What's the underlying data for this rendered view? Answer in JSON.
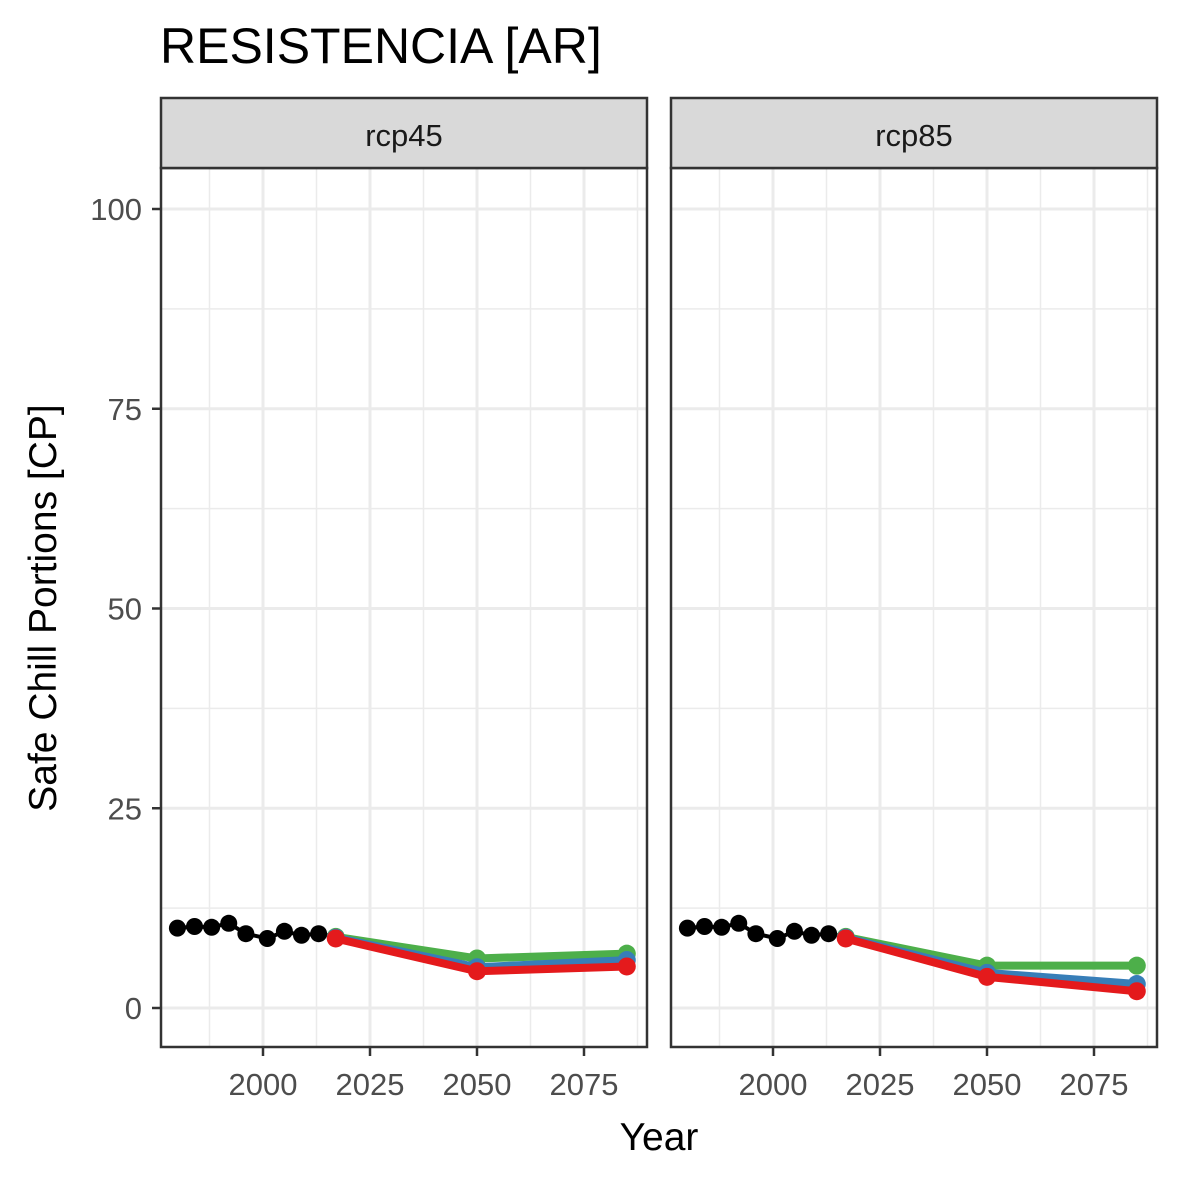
{
  "chart_data": {
    "type": "line",
    "title": "RESISTENCIA [AR]",
    "xlabel": "Year",
    "ylabel": "Safe Chill Portions [CP]",
    "xlim": [
      1975,
      2090
    ],
    "ylim": [
      -5,
      105
    ],
    "x_ticks": [
      2000,
      2025,
      2050,
      2075
    ],
    "x_tick_labels": [
      "2000",
      "2025",
      "2050",
      "2075"
    ],
    "y_ticks": [
      0,
      25,
      50,
      75,
      100
    ],
    "y_tick_labels": [
      "0",
      "25",
      "50",
      "75",
      "100"
    ],
    "grid": true,
    "legend": "none",
    "colors": {
      "historic": "#000000",
      "green": "#4daf4a",
      "blue": "#377eb8",
      "red": "#e41a1c",
      "strip_fill": "#d9d9d9",
      "grid": "#ebebeb",
      "border": "#333333"
    },
    "panels": [
      {
        "label": "rcp45",
        "historic": {
          "x": [
            1980,
            1984,
            1988,
            1992,
            1996,
            2001,
            2005,
            2009,
            2013,
            2017
          ],
          "y": [
            10.0,
            10.2,
            10.1,
            10.6,
            9.3,
            8.7,
            9.6,
            9.1,
            9.3,
            8.9
          ]
        },
        "series": [
          {
            "color": "green",
            "x": [
              2017,
              2050,
              2085
            ],
            "y": [
              8.9,
              6.2,
              6.8
            ]
          },
          {
            "color": "blue",
            "x": [
              2017,
              2050,
              2085
            ],
            "y": [
              8.8,
              5.1,
              6.0
            ]
          },
          {
            "color": "red",
            "x": [
              2017,
              2050,
              2085
            ],
            "y": [
              8.7,
              4.6,
              5.2
            ]
          }
        ]
      },
      {
        "label": "rcp85",
        "historic": {
          "x": [
            1980,
            1984,
            1988,
            1992,
            1996,
            2001,
            2005,
            2009,
            2013,
            2017
          ],
          "y": [
            10.0,
            10.2,
            10.1,
            10.6,
            9.3,
            8.7,
            9.6,
            9.1,
            9.3,
            8.9
          ]
        },
        "series": [
          {
            "color": "green",
            "x": [
              2017,
              2050,
              2085
            ],
            "y": [
              8.9,
              5.3,
              5.3
            ]
          },
          {
            "color": "blue",
            "x": [
              2017,
              2050,
              2085
            ],
            "y": [
              8.8,
              4.4,
              3.0
            ]
          },
          {
            "color": "red",
            "x": [
              2017,
              2050,
              2085
            ],
            "y": [
              8.7,
              3.9,
              2.1
            ]
          }
        ]
      }
    ]
  }
}
